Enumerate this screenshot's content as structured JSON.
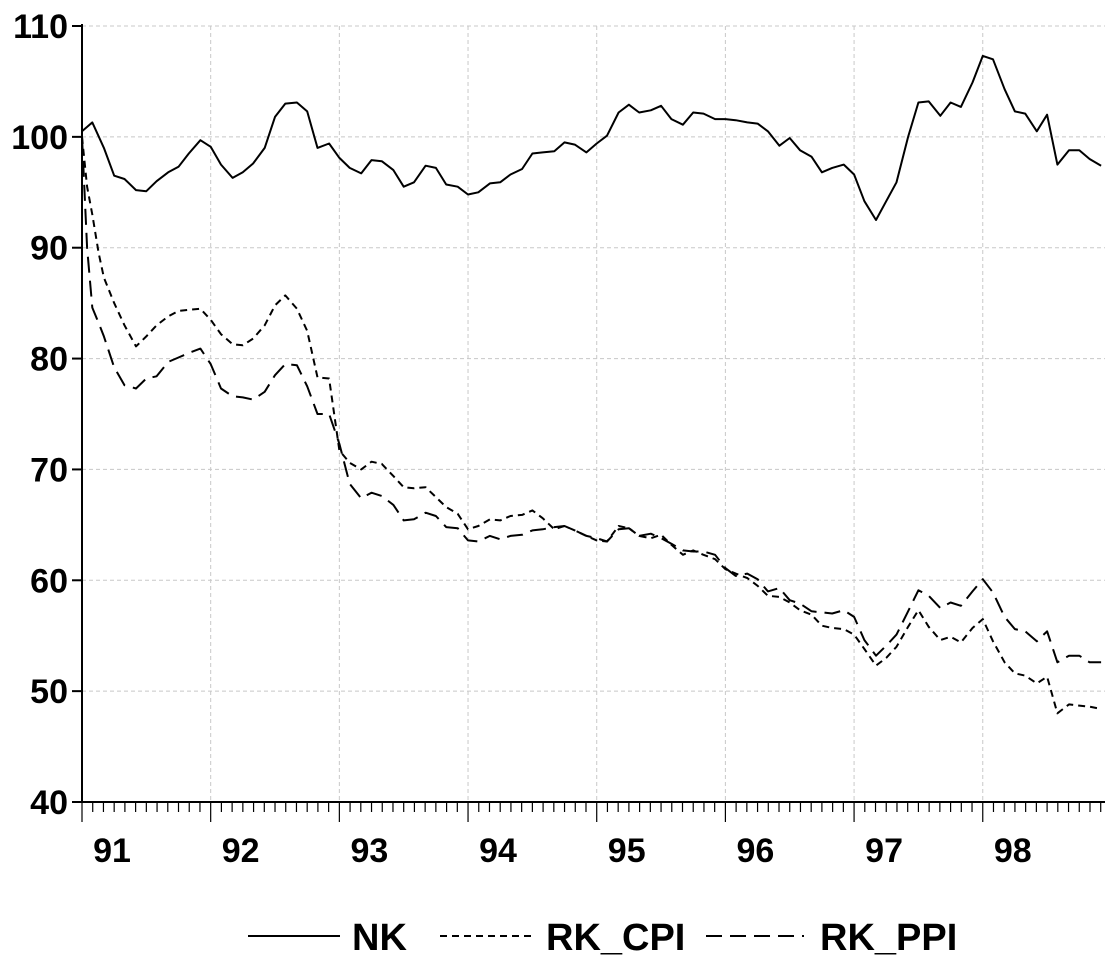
{
  "chart_data": {
    "type": "line",
    "title": "",
    "xlabel": "",
    "ylabel": "",
    "ylim": [
      40,
      110
    ],
    "xlim": [
      1991.0,
      1998.95
    ],
    "y_ticks": [
      40,
      50,
      60,
      70,
      80,
      90,
      100,
      110
    ],
    "x_ticks": [
      {
        "value": 1991.0,
        "label": "91"
      },
      {
        "value": 1992.0,
        "label": "92"
      },
      {
        "value": 1993.0,
        "label": "93"
      },
      {
        "value": 1994.0,
        "label": "94"
      },
      {
        "value": 1995.0,
        "label": "95"
      },
      {
        "value": 1996.0,
        "label": "96"
      },
      {
        "value": 1997.0,
        "label": "97"
      },
      {
        "value": 1998.0,
        "label": "98"
      }
    ],
    "grid": true,
    "legend_position": "bottom",
    "series": [
      {
        "name": "NK",
        "style": "solid",
        "points": [
          [
            1991.0,
            100.5
          ],
          [
            1991.08,
            101.3
          ],
          [
            1991.17,
            99.0
          ],
          [
            1991.25,
            96.5
          ],
          [
            1991.33,
            96.2
          ],
          [
            1991.42,
            95.2
          ],
          [
            1991.5,
            95.1
          ],
          [
            1991.58,
            96.0
          ],
          [
            1991.67,
            96.8
          ],
          [
            1991.75,
            97.3
          ],
          [
            1991.83,
            98.5
          ],
          [
            1991.92,
            99.7
          ],
          [
            1992.0,
            99.1
          ],
          [
            1992.08,
            97.5
          ],
          [
            1992.17,
            96.3
          ],
          [
            1992.25,
            96.8
          ],
          [
            1992.33,
            97.6
          ],
          [
            1992.42,
            99.0
          ],
          [
            1992.5,
            101.8
          ],
          [
            1992.58,
            103.0
          ],
          [
            1992.67,
            103.1
          ],
          [
            1992.75,
            102.3
          ],
          [
            1992.83,
            99.0
          ],
          [
            1992.92,
            99.4
          ],
          [
            1993.0,
            98.1
          ],
          [
            1993.08,
            97.2
          ],
          [
            1993.17,
            96.7
          ],
          [
            1993.25,
            97.9
          ],
          [
            1993.33,
            97.8
          ],
          [
            1993.42,
            97.0
          ],
          [
            1993.5,
            95.5
          ],
          [
            1993.58,
            95.9
          ],
          [
            1993.67,
            97.4
          ],
          [
            1993.75,
            97.2
          ],
          [
            1993.83,
            95.7
          ],
          [
            1993.92,
            95.5
          ],
          [
            1994.0,
            94.8
          ],
          [
            1994.08,
            95.0
          ],
          [
            1994.17,
            95.8
          ],
          [
            1994.25,
            95.9
          ],
          [
            1994.33,
            96.6
          ],
          [
            1994.42,
            97.1
          ],
          [
            1994.5,
            98.5
          ],
          [
            1994.58,
            98.6
          ],
          [
            1994.67,
            98.7
          ],
          [
            1994.75,
            99.5
          ],
          [
            1994.83,
            99.3
          ],
          [
            1994.92,
            98.6
          ],
          [
            1995.0,
            99.4
          ],
          [
            1995.08,
            100.1
          ],
          [
            1995.17,
            102.2
          ],
          [
            1995.25,
            102.9
          ],
          [
            1995.33,
            102.2
          ],
          [
            1995.42,
            102.4
          ],
          [
            1995.5,
            102.8
          ],
          [
            1995.58,
            101.6
          ],
          [
            1995.67,
            101.1
          ],
          [
            1995.75,
            102.2
          ],
          [
            1995.83,
            102.1
          ],
          [
            1995.92,
            101.6
          ],
          [
            1996.0,
            101.6
          ],
          [
            1996.08,
            101.5
          ],
          [
            1996.17,
            101.3
          ],
          [
            1996.25,
            101.2
          ],
          [
            1996.33,
            100.5
          ],
          [
            1996.42,
            99.2
          ],
          [
            1996.5,
            99.9
          ],
          [
            1996.58,
            98.8
          ],
          [
            1996.67,
            98.2
          ],
          [
            1996.75,
            96.8
          ],
          [
            1996.83,
            97.2
          ],
          [
            1996.92,
            97.5
          ],
          [
            1997.0,
            96.6
          ],
          [
            1997.08,
            94.2
          ],
          [
            1997.17,
            92.5
          ],
          [
            1997.25,
            94.2
          ],
          [
            1997.33,
            95.9
          ],
          [
            1997.42,
            100.0
          ],
          [
            1997.5,
            103.1
          ],
          [
            1997.58,
            103.2
          ],
          [
            1997.67,
            101.9
          ],
          [
            1997.75,
            103.1
          ],
          [
            1997.83,
            102.7
          ],
          [
            1997.92,
            104.9
          ],
          [
            1998.0,
            107.3
          ],
          [
            1998.08,
            107.0
          ],
          [
            1998.17,
            104.3
          ],
          [
            1998.25,
            102.3
          ],
          [
            1998.33,
            102.1
          ],
          [
            1998.42,
            100.5
          ],
          [
            1998.5,
            102.0
          ],
          [
            1998.58,
            97.5
          ],
          [
            1998.67,
            98.8
          ],
          [
            1998.75,
            98.8
          ],
          [
            1998.83,
            98.0
          ],
          [
            1998.92,
            97.4
          ]
        ]
      },
      {
        "name": "RK_CPI",
        "style": "dotted",
        "points": [
          [
            1991.0,
            100.0
          ],
          [
            1991.04,
            95.5
          ],
          [
            1991.08,
            93.0
          ],
          [
            1991.13,
            89.5
          ],
          [
            1991.17,
            87.3
          ],
          [
            1991.25,
            85.0
          ],
          [
            1991.33,
            83.0
          ],
          [
            1991.42,
            81.1
          ],
          [
            1991.5,
            82.0
          ],
          [
            1991.58,
            83.0
          ],
          [
            1991.67,
            83.8
          ],
          [
            1991.75,
            84.3
          ],
          [
            1991.83,
            84.4
          ],
          [
            1991.92,
            84.5
          ],
          [
            1992.0,
            83.5
          ],
          [
            1992.08,
            82.2
          ],
          [
            1992.17,
            81.3
          ],
          [
            1992.25,
            81.2
          ],
          [
            1992.33,
            81.8
          ],
          [
            1992.42,
            83.0
          ],
          [
            1992.5,
            84.8
          ],
          [
            1992.58,
            85.7
          ],
          [
            1992.67,
            84.5
          ],
          [
            1992.75,
            82.5
          ],
          [
            1992.83,
            78.3
          ],
          [
            1992.92,
            78.2
          ],
          [
            1993.0,
            71.7
          ],
          [
            1993.08,
            70.6
          ],
          [
            1993.17,
            70.0
          ],
          [
            1993.25,
            70.7
          ],
          [
            1993.33,
            70.5
          ],
          [
            1993.42,
            69.4
          ],
          [
            1993.5,
            68.4
          ],
          [
            1993.58,
            68.3
          ],
          [
            1993.67,
            68.4
          ],
          [
            1993.75,
            67.5
          ],
          [
            1993.83,
            66.6
          ],
          [
            1993.92,
            66.0
          ],
          [
            1994.0,
            64.6
          ],
          [
            1994.08,
            64.9
          ],
          [
            1994.17,
            65.5
          ],
          [
            1994.25,
            65.4
          ],
          [
            1994.33,
            65.8
          ],
          [
            1994.42,
            65.9
          ],
          [
            1994.5,
            66.3
          ],
          [
            1994.58,
            65.6
          ],
          [
            1994.67,
            64.6
          ],
          [
            1994.75,
            64.9
          ],
          [
            1994.83,
            64.5
          ],
          [
            1994.92,
            64.0
          ],
          [
            1995.0,
            63.6
          ],
          [
            1995.08,
            63.5
          ],
          [
            1995.17,
            64.9
          ],
          [
            1995.25,
            64.7
          ],
          [
            1995.33,
            64.0
          ],
          [
            1995.42,
            63.8
          ],
          [
            1995.5,
            64.1
          ],
          [
            1995.58,
            63.2
          ],
          [
            1995.67,
            62.3
          ],
          [
            1995.75,
            62.7
          ],
          [
            1995.83,
            62.3
          ],
          [
            1995.92,
            61.9
          ],
          [
            1996.0,
            61.0
          ],
          [
            1996.08,
            60.6
          ],
          [
            1996.17,
            60.2
          ],
          [
            1996.25,
            59.5
          ],
          [
            1996.33,
            58.6
          ],
          [
            1996.42,
            58.5
          ],
          [
            1996.5,
            58.0
          ],
          [
            1996.58,
            57.3
          ],
          [
            1996.67,
            56.9
          ],
          [
            1996.75,
            55.9
          ],
          [
            1996.83,
            55.7
          ],
          [
            1996.92,
            55.6
          ],
          [
            1997.0,
            55.1
          ],
          [
            1997.08,
            53.8
          ],
          [
            1997.17,
            52.3
          ],
          [
            1997.25,
            53.0
          ],
          [
            1997.33,
            54.0
          ],
          [
            1997.42,
            55.8
          ],
          [
            1997.5,
            57.3
          ],
          [
            1997.58,
            55.8
          ],
          [
            1997.67,
            54.6
          ],
          [
            1997.75,
            54.9
          ],
          [
            1997.83,
            54.4
          ],
          [
            1997.92,
            55.7
          ],
          [
            1998.0,
            56.5
          ],
          [
            1998.08,
            54.5
          ],
          [
            1998.17,
            52.6
          ],
          [
            1998.25,
            51.6
          ],
          [
            1998.33,
            51.4
          ],
          [
            1998.42,
            50.7
          ],
          [
            1998.5,
            51.3
          ],
          [
            1998.58,
            48.0
          ],
          [
            1998.67,
            48.8
          ],
          [
            1998.75,
            48.7
          ],
          [
            1998.83,
            48.6
          ],
          [
            1998.92,
            48.4
          ]
        ]
      },
      {
        "name": "RK_PPI",
        "style": "dashed",
        "points": [
          [
            1991.0,
            100.0
          ],
          [
            1991.04,
            90.0
          ],
          [
            1991.08,
            84.6
          ],
          [
            1991.13,
            83.2
          ],
          [
            1991.17,
            82.0
          ],
          [
            1991.25,
            79.2
          ],
          [
            1991.33,
            77.6
          ],
          [
            1991.42,
            77.3
          ],
          [
            1991.5,
            78.2
          ],
          [
            1991.58,
            78.4
          ],
          [
            1991.67,
            79.7
          ],
          [
            1991.75,
            80.1
          ],
          [
            1991.83,
            80.5
          ],
          [
            1991.92,
            80.9
          ],
          [
            1992.0,
            79.5
          ],
          [
            1992.08,
            77.3
          ],
          [
            1992.17,
            76.6
          ],
          [
            1992.25,
            76.5
          ],
          [
            1992.33,
            76.3
          ],
          [
            1992.42,
            77.0
          ],
          [
            1992.5,
            78.5
          ],
          [
            1992.58,
            79.5
          ],
          [
            1992.67,
            79.4
          ],
          [
            1992.75,
            77.5
          ],
          [
            1992.83,
            75.0
          ],
          [
            1992.92,
            75.0
          ],
          [
            1993.0,
            72.3
          ],
          [
            1993.08,
            68.7
          ],
          [
            1993.17,
            67.4
          ],
          [
            1993.25,
            67.9
          ],
          [
            1993.33,
            67.6
          ],
          [
            1993.42,
            66.8
          ],
          [
            1993.5,
            65.4
          ],
          [
            1993.58,
            65.5
          ],
          [
            1993.67,
            66.1
          ],
          [
            1993.75,
            65.8
          ],
          [
            1993.83,
            64.8
          ],
          [
            1993.92,
            64.7
          ],
          [
            1994.0,
            63.6
          ],
          [
            1994.08,
            63.5
          ],
          [
            1994.17,
            64.0
          ],
          [
            1994.25,
            63.7
          ],
          [
            1994.33,
            64.0
          ],
          [
            1994.42,
            64.1
          ],
          [
            1994.5,
            64.5
          ],
          [
            1994.58,
            64.6
          ],
          [
            1994.67,
            64.8
          ],
          [
            1994.75,
            64.9
          ],
          [
            1994.83,
            64.5
          ],
          [
            1994.92,
            64.0
          ],
          [
            1995.0,
            63.8
          ],
          [
            1995.08,
            63.5
          ],
          [
            1995.17,
            64.6
          ],
          [
            1995.25,
            64.7
          ],
          [
            1995.33,
            64.0
          ],
          [
            1995.42,
            64.2
          ],
          [
            1995.5,
            63.8
          ],
          [
            1995.58,
            63.3
          ],
          [
            1995.67,
            62.7
          ],
          [
            1995.75,
            62.6
          ],
          [
            1995.83,
            62.6
          ],
          [
            1995.92,
            62.3
          ],
          [
            1996.0,
            61.1
          ],
          [
            1996.08,
            60.4
          ],
          [
            1996.17,
            60.6
          ],
          [
            1996.25,
            60.1
          ],
          [
            1996.33,
            59.0
          ],
          [
            1996.42,
            59.3
          ],
          [
            1996.5,
            58.2
          ],
          [
            1996.58,
            57.9
          ],
          [
            1996.67,
            57.2
          ],
          [
            1996.75,
            57.1
          ],
          [
            1996.83,
            57.0
          ],
          [
            1996.92,
            57.3
          ],
          [
            1997.0,
            56.7
          ],
          [
            1997.08,
            54.6
          ],
          [
            1997.17,
            53.2
          ],
          [
            1997.25,
            54.1
          ],
          [
            1997.33,
            55.1
          ],
          [
            1997.42,
            57.2
          ],
          [
            1997.5,
            59.1
          ],
          [
            1997.58,
            58.6
          ],
          [
            1997.67,
            57.5
          ],
          [
            1997.75,
            58.0
          ],
          [
            1997.83,
            57.7
          ],
          [
            1997.92,
            59.0
          ],
          [
            1998.0,
            60.1
          ],
          [
            1998.08,
            58.9
          ],
          [
            1998.17,
            56.7
          ],
          [
            1998.25,
            55.6
          ],
          [
            1998.33,
            55.4
          ],
          [
            1998.42,
            54.5
          ],
          [
            1998.5,
            55.4
          ],
          [
            1998.58,
            52.6
          ],
          [
            1998.67,
            53.2
          ],
          [
            1998.75,
            53.2
          ],
          [
            1998.83,
            52.6
          ],
          [
            1998.92,
            52.6
          ]
        ]
      }
    ]
  }
}
